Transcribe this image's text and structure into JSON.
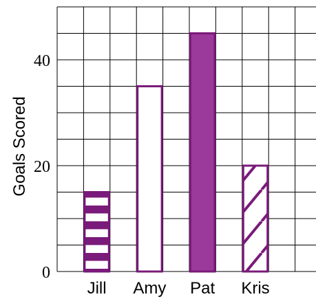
{
  "chart_data": {
    "type": "bar",
    "title": "",
    "xlabel": "",
    "ylabel": "Goals Scored",
    "categories": [
      "Jill",
      "Amy",
      "Pat",
      "Kris"
    ],
    "values": [
      15,
      35,
      45,
      20
    ],
    "bar_styles": [
      "horizontal-stripes",
      "hollow",
      "solid",
      "diagonal-hatch"
    ],
    "ylim": [
      0,
      50
    ],
    "yticks": [
      0,
      20,
      40
    ],
    "grid": true,
    "colors": {
      "bar": "#7a1a7a",
      "fill": "#9b3a9b"
    }
  }
}
